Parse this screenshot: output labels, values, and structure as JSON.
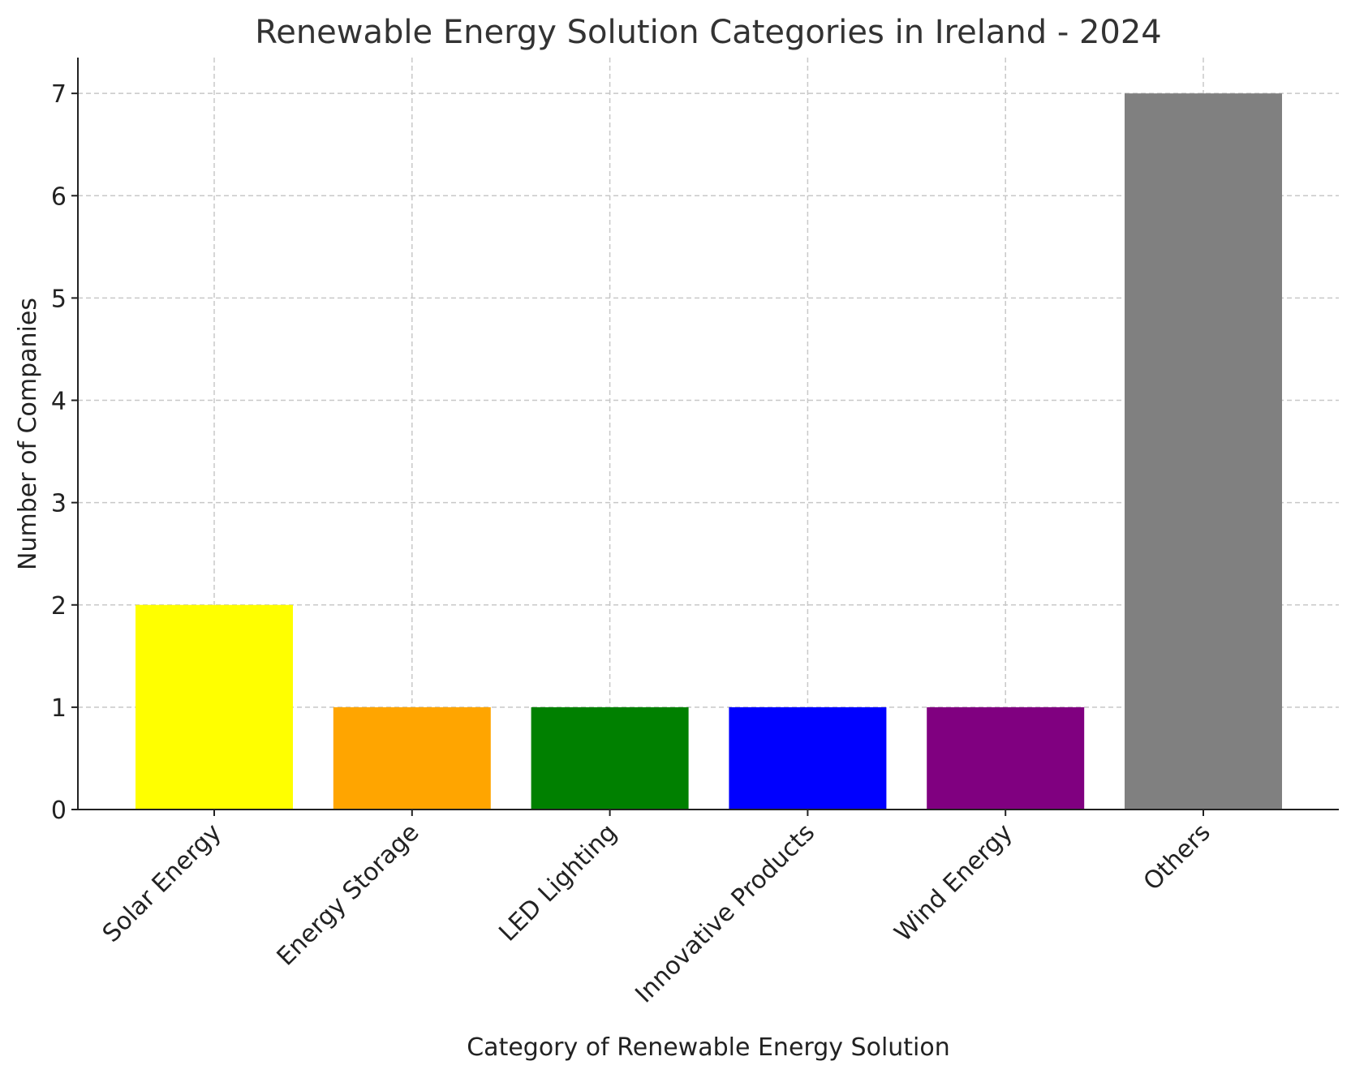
{
  "chart_data": {
    "type": "bar",
    "title": "Renewable Energy Solution Categories in Ireland - 2024",
    "xlabel": "Category of Renewable Energy Solution",
    "ylabel": "Number of Companies",
    "categories": [
      "Solar Energy",
      "Energy Storage",
      "LED Lighting",
      "Innovative Products",
      "Wind Energy",
      "Others"
    ],
    "values": [
      2,
      1,
      1,
      1,
      1,
      7
    ],
    "colors": [
      "#ffff00",
      "#ffa500",
      "#008000",
      "#0000ff",
      "#800080",
      "#808080"
    ],
    "yticks": [
      "0",
      "1",
      "2",
      "3",
      "4",
      "5",
      "6",
      "7"
    ],
    "ylim": [
      0,
      7.35
    ],
    "grid": true,
    "grid_style": "dashed"
  }
}
